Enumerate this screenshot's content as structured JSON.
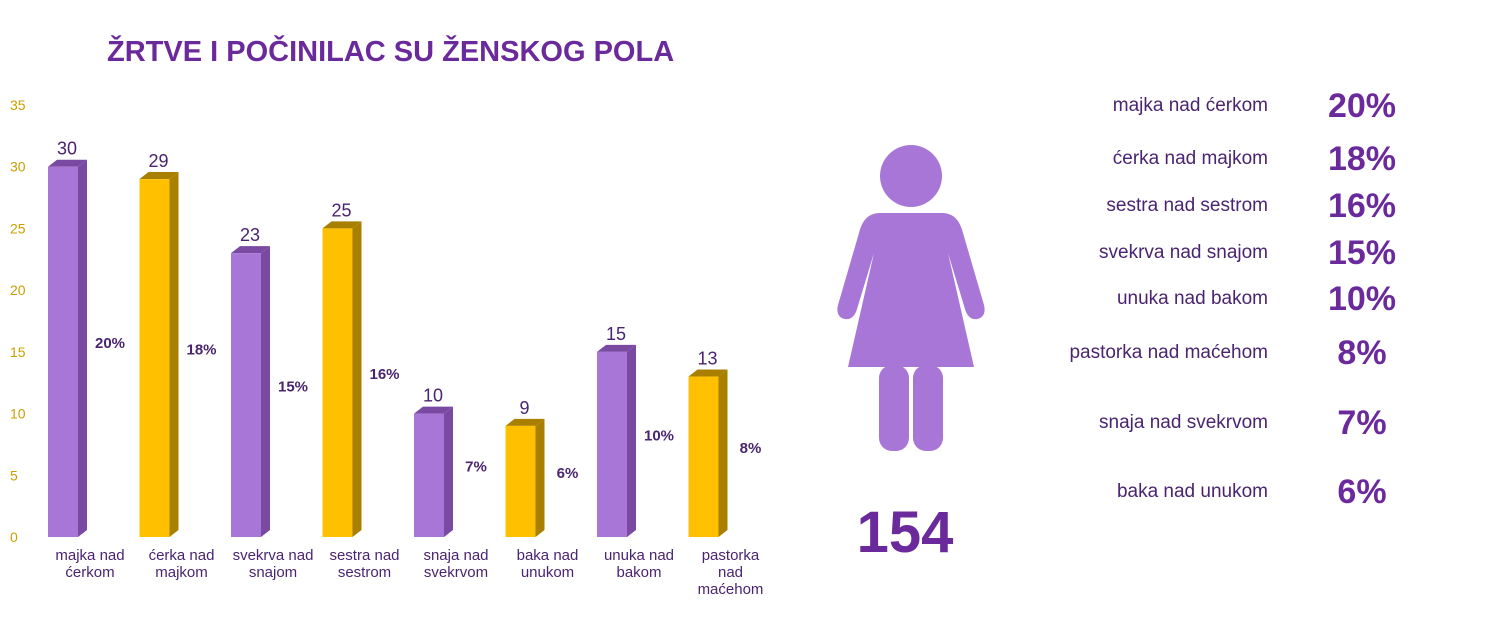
{
  "title": "ŽRTVE I POČINILAC SU ŽENSKOG POLA",
  "total": "154",
  "colors": {
    "purple": "#a876d6",
    "purple_side": "#7a4aa3",
    "gold": "#ffc000",
    "gold_side": "#a97f00",
    "title": "#6b2a9c",
    "tick": "#c9a000"
  },
  "icons": {
    "figure": "woman-icon"
  },
  "chart_data": {
    "type": "bar",
    "title": "ŽRTVE I POČINILAC SU ŽENSKOG POLA",
    "xlabel": "",
    "ylabel": "",
    "ylim": [
      0,
      35
    ],
    "yticks": [
      "0",
      "5",
      "10",
      "15",
      "20",
      "25",
      "30",
      "35"
    ],
    "grid": false,
    "categories": [
      [
        "majka nad",
        "ćerkom"
      ],
      [
        "ćerka nad",
        "majkom"
      ],
      [
        "svekrva nad",
        "snajom"
      ],
      [
        "sestra nad",
        "sestrom"
      ],
      [
        "snaja nad",
        "svekrvom"
      ],
      [
        "baka nad",
        "unukom"
      ],
      [
        "unuka nad",
        "bakom"
      ],
      [
        "pastorka",
        "nad",
        "maćehom"
      ]
    ],
    "values": [
      30,
      29,
      23,
      25,
      10,
      9,
      15,
      13
    ],
    "percent_labels": [
      "20%",
      "18%",
      "15%",
      "16%",
      "7%",
      "6%",
      "10%",
      "8%"
    ],
    "bar_colors": [
      "purple",
      "gold",
      "purple",
      "gold",
      "purple",
      "gold",
      "purple",
      "gold"
    ]
  },
  "legend": [
    {
      "label": "majka nad ćerkom",
      "pct": "20%"
    },
    {
      "label": "ćerka nad majkom",
      "pct": "18%"
    },
    {
      "label": "sestra nad sestrom",
      "pct": "16%"
    },
    {
      "label": "svekrva nad snajom",
      "pct": "15%"
    },
    {
      "label": "unuka nad bakom",
      "pct": "10%"
    },
    {
      "label": "pastorka nad maćehom",
      "pct": "8%"
    },
    {
      "label": "snaja nad svekrvom",
      "pct": "7%"
    },
    {
      "label": "baka nad unukom",
      "pct": "6%"
    }
  ]
}
